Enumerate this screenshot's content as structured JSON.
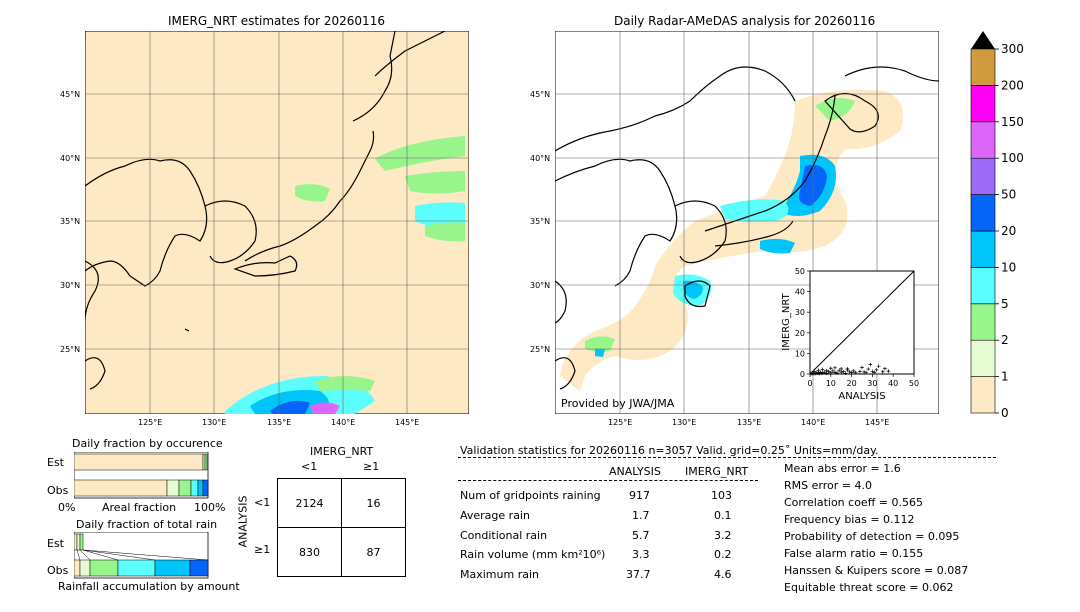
{
  "left_map": {
    "title": "IMERG_NRT estimates for 20260116",
    "lat_labels": [
      "45°N",
      "40°N",
      "35°N",
      "30°N",
      "25°N"
    ],
    "lon_labels": [
      "125°E",
      "130°E",
      "135°E",
      "140°E",
      "145°E"
    ]
  },
  "right_map": {
    "title": "Daily Radar-AMeDAS analysis for 20260116",
    "credit": "Provided by JWA/JMA",
    "lat_labels": [
      "45°N",
      "40°N",
      "35°N",
      "30°N",
      "25°N"
    ],
    "lon_labels": [
      "125°E",
      "130°E",
      "135°E",
      "140°E",
      "145°E"
    ]
  },
  "colorbar": {
    "labels": [
      "0",
      "1",
      "2",
      "5",
      "10",
      "20",
      "50",
      "100",
      "150",
      "200",
      "300"
    ],
    "colors": [
      "#fde9c3",
      "#e8fcd4",
      "#97f58c",
      "#5cfdfd",
      "#00c5fa",
      "#0565f9",
      "#9b6bf8",
      "#dd66f9",
      "#ff00f5",
      "#d09a3e"
    ]
  },
  "chart_data": [
    {
      "type": "scatter",
      "title": "",
      "xlabel": "ANALYSIS",
      "ylabel": "IMERG_NRT",
      "xlim": [
        0,
        50
      ],
      "ylim": [
        0,
        50
      ],
      "xticks": [
        "0",
        "10",
        "20",
        "30",
        "40",
        "50"
      ],
      "yticks": [
        "0",
        "10",
        "20",
        "30",
        "40",
        "50"
      ],
      "points": [
        [
          0.5,
          0.2
        ],
        [
          1,
          0.3
        ],
        [
          1.5,
          0.1
        ],
        [
          2,
          0.4
        ],
        [
          2.5,
          0.2
        ],
        [
          3,
          0.5
        ],
        [
          3.5,
          0.3
        ],
        [
          4,
          0.6
        ],
        [
          4.5,
          0.2
        ],
        [
          5,
          0.8
        ],
        [
          5.5,
          0.3
        ],
        [
          6,
          0.5
        ],
        [
          7,
          0.9
        ],
        [
          8,
          0.4
        ],
        [
          9,
          1.2
        ],
        [
          10,
          0.6
        ],
        [
          11,
          1.5
        ],
        [
          12,
          0.8
        ],
        [
          13,
          0.5
        ],
        [
          14,
          1.8
        ],
        [
          15,
          0.9
        ],
        [
          16,
          1.2
        ],
        [
          17,
          0.4
        ],
        [
          18,
          2.5
        ],
        [
          19,
          1.0
        ],
        [
          20,
          0.8
        ],
        [
          21,
          1.5
        ],
        [
          22,
          0.6
        ],
        [
          24,
          1.2
        ],
        [
          25,
          3.2
        ],
        [
          26,
          1.0
        ],
        [
          27,
          0.7
        ],
        [
          28,
          2.4
        ],
        [
          29,
          4.6
        ],
        [
          30,
          1.3
        ],
        [
          31,
          0.8
        ],
        [
          32,
          2.0
        ],
        [
          33,
          3.8
        ],
        [
          35,
          1.1
        ],
        [
          36,
          2.6
        ],
        [
          37.7,
          1.4
        ],
        [
          2,
          1.2
        ],
        [
          4,
          1.8
        ],
        [
          6,
          2.2
        ],
        [
          8,
          1.6
        ],
        [
          10,
          2.8
        ],
        [
          12,
          3.0
        ],
        [
          15,
          2.5
        ],
        [
          18,
          1.9
        ]
      ]
    },
    {
      "type": "bar",
      "title": "Daily fraction by occurence",
      "categories": [
        "Est",
        "Obs"
      ],
      "xlabels": [
        "0%",
        "Areal fraction",
        "100%"
      ]
    },
    {
      "type": "bar",
      "title": "Daily fraction of total rain",
      "categories": [
        "Est",
        "Obs"
      ],
      "xlabel": "Rainfall accumulation by amount"
    }
  ],
  "contingency": {
    "header": "IMERG_NRT",
    "col_labels": [
      "<1",
      "≥1"
    ],
    "row_header": "ANALYSIS",
    "row_labels": [
      "<1",
      "≥1"
    ],
    "cells": [
      [
        "2124",
        "16"
      ],
      [
        "830",
        "87"
      ]
    ]
  },
  "validation": {
    "header": "Validation statistics for 20260116  n=3057 Valid. grid=0.25˚ Units=mm/day.",
    "col_analysis": "ANALYSIS",
    "col_imerg": "IMERG_NRT",
    "rows": [
      {
        "label": "Num of gridpoints raining",
        "analysis": "917",
        "imerg": "103"
      },
      {
        "label": "Average rain",
        "analysis": "1.7",
        "imerg": "0.1"
      },
      {
        "label": "Conditional rain",
        "analysis": "5.7",
        "imerg": "3.2"
      },
      {
        "label": "Rain volume (mm km²10⁶)",
        "analysis": "3.3",
        "imerg": "0.2"
      },
      {
        "label": "Maximum rain",
        "analysis": "37.7",
        "imerg": "4.6"
      }
    ],
    "scores": [
      "Mean abs error =    1.6",
      "RMS error =    4.0",
      "Correlation coeff =  0.565",
      "Frequency bias =  0.112",
      "Probability of detection =  0.095",
      "False alarm ratio =  0.155",
      "Hanssen & Kuipers score =  0.087",
      "Equitable threat score =  0.062"
    ]
  }
}
